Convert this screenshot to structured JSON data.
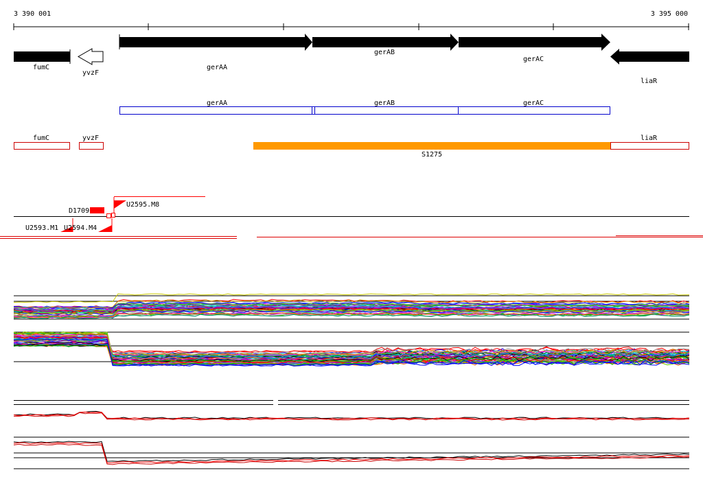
{
  "ruler": {
    "start_label": "3 390 001",
    "end_label": "3 395 000"
  },
  "genes_strand": [
    {
      "name": "fumC",
      "strand": "+",
      "filled": true
    },
    {
      "name": "yvzF",
      "strand": "-",
      "filled": false
    },
    {
      "name": "gerAA",
      "strand": "+",
      "filled": true
    },
    {
      "name": "gerAB",
      "strand": "+",
      "filled": true
    },
    {
      "name": "gerAC",
      "strand": "+",
      "filled": true
    },
    {
      "name": "liaR",
      "strand": "-",
      "filled": true
    }
  ],
  "cds_blue": [
    {
      "name": "gerAA"
    },
    {
      "name": "gerAB"
    },
    {
      "name": "gerAC"
    }
  ],
  "cds_red": [
    {
      "name": "fumC"
    },
    {
      "name": "yvzF"
    },
    {
      "name": "liaR"
    }
  ],
  "segment": {
    "name": "S1275",
    "color": "#ff9900"
  },
  "features": [
    {
      "name": "D1709"
    },
    {
      "name": "U2595.M8"
    },
    {
      "name": "U2593.M1"
    },
    {
      "name": "U2594.M4"
    }
  ],
  "colors": {
    "gene_fill": "#000000",
    "blue_cds": "#0000cc",
    "red_cds": "#cc0000",
    "feature_red": "#ff0000",
    "tile_red": "#dd0000"
  }
}
